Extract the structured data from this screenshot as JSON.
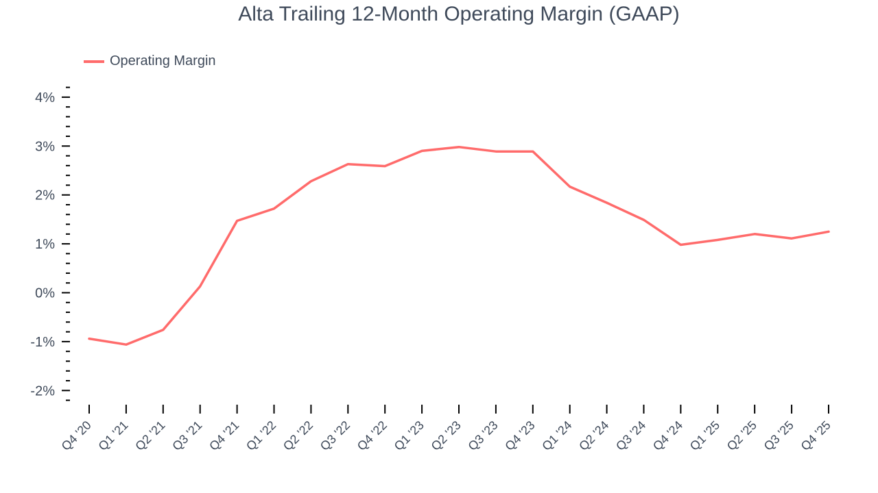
{
  "title": "Alta Trailing 12-Month Operating Margin (GAAP)",
  "legend": {
    "label": "Operating Margin",
    "color": "#ff6b6b"
  },
  "colors": {
    "line": "#ff6b6b",
    "text": "#3f4a5a",
    "axis": "#000000"
  },
  "y_axis": {
    "ticks": [
      {
        "value": 4,
        "label": "4%"
      },
      {
        "value": 3,
        "label": "3%"
      },
      {
        "value": 2,
        "label": "2%"
      },
      {
        "value": 1,
        "label": "1%"
      },
      {
        "value": 0,
        "label": "0%"
      },
      {
        "value": -1,
        "label": "-1%"
      },
      {
        "value": -2,
        "label": "-2%"
      }
    ]
  },
  "chart_data": {
    "type": "line",
    "title": "Alta Trailing 12-Month Operating Margin (GAAP)",
    "xlabel": "",
    "ylabel": "",
    "ylim": [
      -2.2,
      4.2
    ],
    "grid": false,
    "legend_position": "top-left",
    "categories": [
      "Q4 '20",
      "Q1 '21",
      "Q2 '21",
      "Q3 '21",
      "Q4 '21",
      "Q1 '22",
      "Q2 '22",
      "Q3 '22",
      "Q4 '22",
      "Q1 '23",
      "Q2 '23",
      "Q3 '23",
      "Q4 '23",
      "Q1 '24",
      "Q2 '24",
      "Q3 '24",
      "Q4 '24",
      "Q1 '25",
      "Q2 '25",
      "Q3 '25",
      "Q4 '25"
    ],
    "series": [
      {
        "name": "Operating Margin",
        "unit": "%",
        "values": [
          -0.94,
          -1.06,
          -0.76,
          0.13,
          1.47,
          1.72,
          2.28,
          2.63,
          2.59,
          2.9,
          2.98,
          2.89,
          2.89,
          2.17,
          1.84,
          1.49,
          0.98,
          1.08,
          1.2,
          1.11,
          1.25
        ]
      }
    ]
  }
}
